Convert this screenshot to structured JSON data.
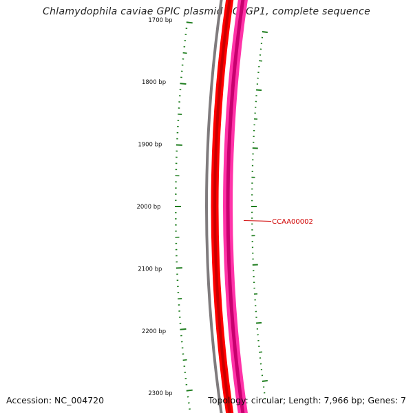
{
  "title": "Chlamydophila caviae GPIC plasmid pCpGP1, complete sequence",
  "accession_text": "Accession: NC_004720",
  "summary_text": "Topology: circular; Length: 7,966 bp; Genes: 7",
  "colors": {
    "backbone": "#7f7b7d",
    "gene_outer": "#ff0000",
    "gene_inner": "#c80000",
    "feature_outer": "#ff33a8",
    "feature_inner": "#c8006f",
    "tick": "#1e7d1e",
    "gene_label": "#d00000"
  },
  "scale": {
    "ticks": [
      {
        "bp": 1700,
        "label": "1700 bp"
      },
      {
        "bp": 1800,
        "label": "1800 bp"
      },
      {
        "bp": 1900,
        "label": "1900 bp"
      },
      {
        "bp": 2000,
        "label": "2000 bp"
      },
      {
        "bp": 2100,
        "label": "2100 bp"
      },
      {
        "bp": 2200,
        "label": "2200 bp"
      },
      {
        "bp": 2300,
        "label": "2300 bp"
      }
    ]
  },
  "genes": [
    {
      "label": "CCAA00002",
      "bp": 2025
    }
  ]
}
